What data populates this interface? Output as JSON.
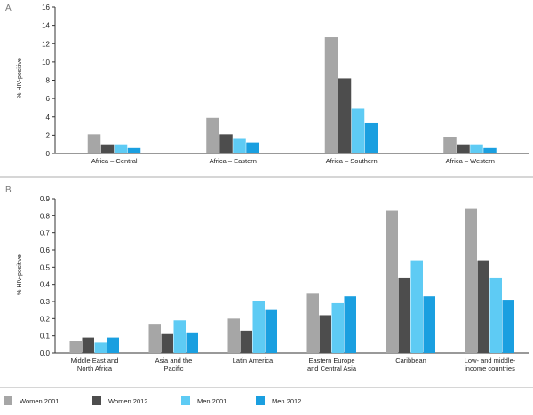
{
  "colors": {
    "women_2001": "#a6a6a6",
    "women_2012": "#4d4d4d",
    "men_2001": "#5ecbf4",
    "men_2012": "#1a9fe0",
    "axis": "#333333",
    "separator": "#c9c9c9"
  },
  "legend": [
    "Women 2001",
    "Women 2012",
    "Men 2001",
    "Men 2012"
  ],
  "chart_data": [
    {
      "panel": "A",
      "type": "bar",
      "ylabel": "% HIV-positive",
      "ylim": [
        0,
        16
      ],
      "yticks": [
        0,
        2,
        4,
        6,
        8,
        10,
        12,
        14,
        16
      ],
      "grid": false,
      "categories": [
        "Africa – Central",
        "Africa – Eastern",
        "Africa – Southern",
        "Africa – Western"
      ],
      "series": [
        {
          "name": "Women 2001",
          "values": [
            2.1,
            3.9,
            12.7,
            1.8
          ]
        },
        {
          "name": "Women 2012",
          "values": [
            1.0,
            2.1,
            8.2,
            1.0
          ]
        },
        {
          "name": "Men 2001",
          "values": [
            1.0,
            1.6,
            4.9,
            1.0
          ]
        },
        {
          "name": "Men 2012",
          "values": [
            0.6,
            1.2,
            3.3,
            0.6
          ]
        }
      ]
    },
    {
      "panel": "B",
      "type": "bar",
      "ylabel": "% HIV-positive",
      "ylim": [
        0,
        0.9
      ],
      "yticks": [
        0,
        0.1,
        0.2,
        0.3,
        0.4,
        0.5,
        0.6,
        0.7,
        0.8,
        0.9
      ],
      "grid": false,
      "categories": [
        [
          "Middle East and",
          "North Africa"
        ],
        [
          "Asia and the",
          "Pacific"
        ],
        [
          "Latin America"
        ],
        [
          "Eastern Europe",
          "and Central Asia"
        ],
        [
          "Caribbean"
        ],
        [
          "Low- and middle-",
          "income countries"
        ]
      ],
      "series": [
        {
          "name": "Women 2001",
          "values": [
            0.07,
            0.17,
            0.2,
            0.35,
            0.83,
            0.84
          ]
        },
        {
          "name": "Women 2012",
          "values": [
            0.09,
            0.11,
            0.13,
            0.22,
            0.44,
            0.54
          ]
        },
        {
          "name": "Men 2001",
          "values": [
            0.06,
            0.19,
            0.3,
            0.29,
            0.54,
            0.44
          ]
        },
        {
          "name": "Men 2012",
          "values": [
            0.09,
            0.12,
            0.25,
            0.33,
            0.33,
            0.31
          ]
        }
      ]
    }
  ]
}
